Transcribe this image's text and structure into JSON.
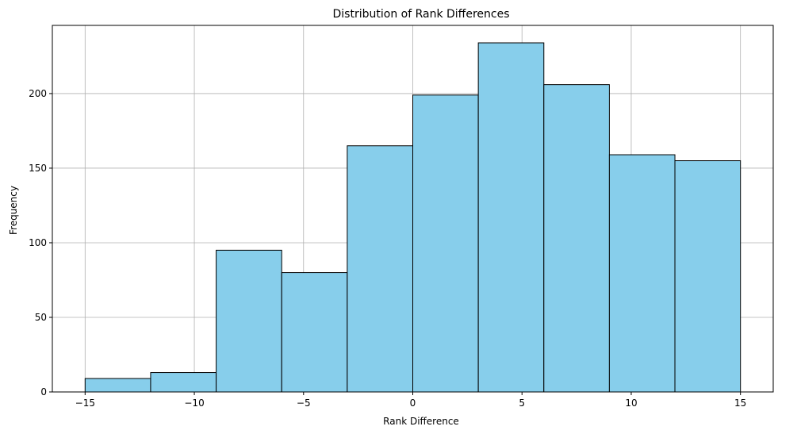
{
  "chart_data": {
    "type": "bar",
    "subtype": "histogram",
    "title": "Distribution of Rank Differences",
    "xlabel": "Rank Difference",
    "ylabel": "Frequency",
    "bin_edges": [
      -15,
      -12,
      -9,
      -6,
      -3,
      0,
      3,
      6,
      9,
      12,
      15
    ],
    "values": [
      9,
      13,
      95,
      80,
      165,
      199,
      234,
      206,
      159,
      155
    ],
    "xlim": [
      -16.5,
      16.5
    ],
    "ylim": [
      0,
      245.7
    ],
    "xticks": [
      -15,
      -10,
      -5,
      0,
      5,
      10,
      15
    ],
    "xtick_labels": [
      "−15",
      "−10",
      "−5",
      "0",
      "5",
      "10",
      "15"
    ],
    "yticks": [
      0,
      50,
      100,
      150,
      200
    ],
    "ytick_labels": [
      "0",
      "50",
      "100",
      "150",
      "200"
    ],
    "grid": true,
    "bar_color": "#87ceeb",
    "edge_color": "#000000",
    "grid_color": "#b0b0b0"
  }
}
